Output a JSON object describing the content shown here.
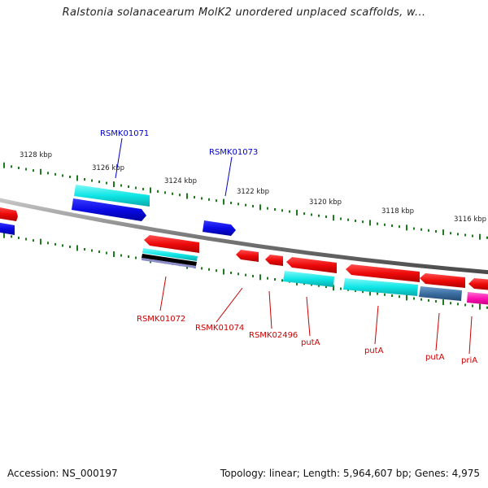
{
  "title": "Ralstonia solanacearum MolK2 unordered unplaced scaffolds, w...",
  "footer": {
    "accession": "Accession: NS_000197",
    "stats": "Topology: linear; Length: 5,964,607 bp; Genes: 4,975"
  },
  "colors": {
    "backbone": "#8a8a8a",
    "tick": "#1e7a1e",
    "label_forward": "#0000cc",
    "label_reverse": "#cc0000",
    "gene_blue": "#0a0ae6",
    "gene_cyan": "#10e6e6",
    "gene_red": "#ee0a0a",
    "gene_steel": "#3c6ea0",
    "gene_magenta": "#ff10b4",
    "gene_purple": "#5a5a9a"
  },
  "kbp_ticks": [
    {
      "text": "3128 kbp"
    },
    {
      "text": "3126 kbp"
    },
    {
      "text": "3124 kbp"
    },
    {
      "text": "3122 kbp"
    },
    {
      "text": "3120 kbp"
    },
    {
      "text": "3118 kbp"
    },
    {
      "text": "3116 kbp"
    }
  ],
  "gene_labels": [
    {
      "text": "RSMK01071",
      "strand": "forward"
    },
    {
      "text": "RSMK01073",
      "strand": "forward"
    },
    {
      "text": "RSMK01072",
      "strand": "reverse"
    },
    {
      "text": "RSMK01074",
      "strand": "reverse"
    },
    {
      "text": "RSMK02496",
      "strand": "reverse"
    },
    {
      "text": "putA",
      "strand": "reverse"
    },
    {
      "text": "putA",
      "strand": "reverse"
    },
    {
      "text": "putA",
      "strand": "reverse"
    },
    {
      "text": "priA",
      "strand": "reverse"
    }
  ]
}
